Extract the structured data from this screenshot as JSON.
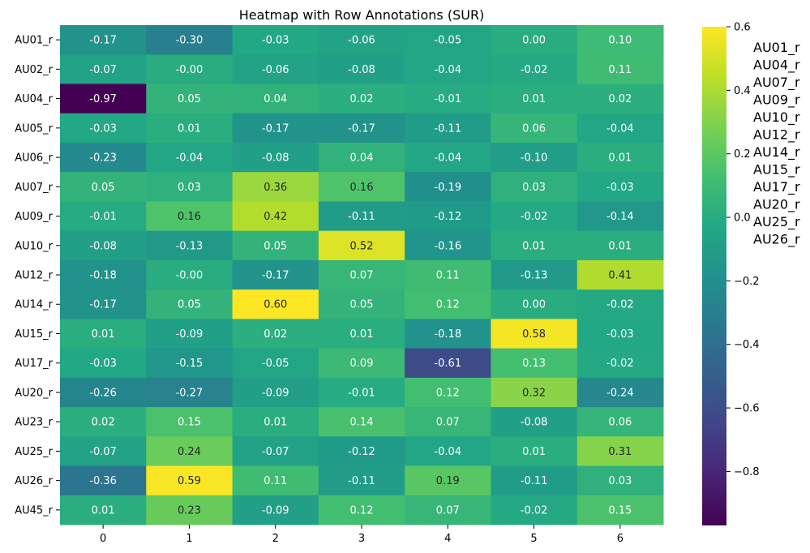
{
  "chart_data": {
    "type": "heatmap",
    "title": "Heatmap with Row Annotations (SUR)",
    "colormap": "viridis",
    "vmin": -0.97,
    "vmax": 0.6,
    "columns": [
      "0",
      "1",
      "2",
      "3",
      "4",
      "5",
      "6"
    ],
    "rows": [
      "AU01_r",
      "AU02_r",
      "AU04_r",
      "AU05_r",
      "AU06_r",
      "AU07_r",
      "AU09_r",
      "AU10_r",
      "AU12_r",
      "AU14_r",
      "AU15_r",
      "AU17_r",
      "AU20_r",
      "AU23_r",
      "AU25_r",
      "AU26_r",
      "AU45_r"
    ],
    "values": [
      [
        -0.17,
        -0.3,
        -0.03,
        -0.06,
        -0.05,
        0.0,
        0.1
      ],
      [
        -0.07,
        -0.0,
        -0.06,
        -0.08,
        -0.04,
        -0.02,
        0.11
      ],
      [
        -0.97,
        0.05,
        0.04,
        0.02,
        -0.01,
        0.01,
        0.02
      ],
      [
        -0.03,
        0.01,
        -0.17,
        -0.17,
        -0.11,
        0.06,
        -0.04
      ],
      [
        -0.23,
        -0.04,
        -0.08,
        0.04,
        -0.04,
        -0.1,
        0.01
      ],
      [
        0.05,
        0.03,
        0.36,
        0.16,
        -0.19,
        0.03,
        -0.03
      ],
      [
        -0.01,
        0.16,
        0.42,
        -0.11,
        -0.12,
        -0.02,
        -0.14
      ],
      [
        -0.08,
        -0.13,
        0.05,
        0.52,
        -0.16,
        0.01,
        0.01
      ],
      [
        -0.18,
        -0.0,
        -0.17,
        0.07,
        0.11,
        -0.13,
        0.41
      ],
      [
        -0.17,
        0.05,
        0.6,
        0.05,
        0.12,
        0.0,
        -0.02
      ],
      [
        0.01,
        -0.09,
        0.02,
        0.01,
        -0.18,
        0.58,
        -0.03
      ],
      [
        -0.03,
        -0.15,
        -0.05,
        0.09,
        -0.61,
        0.13,
        -0.02
      ],
      [
        -0.26,
        -0.27,
        -0.09,
        -0.01,
        0.12,
        0.32,
        -0.24
      ],
      [
        0.02,
        0.15,
        0.01,
        0.14,
        0.07,
        -0.08,
        0.06
      ],
      [
        -0.07,
        0.24,
        -0.07,
        -0.12,
        -0.04,
        0.01,
        0.31
      ],
      [
        -0.36,
        0.59,
        0.11,
        -0.11,
        0.19,
        -0.11,
        0.03
      ],
      [
        0.01,
        0.23,
        -0.09,
        0.12,
        0.07,
        -0.02,
        0.15
      ]
    ],
    "value_labels": [
      [
        "-0.17",
        "-0.30",
        "-0.03",
        "-0.06",
        "-0.05",
        "0.00",
        "0.10"
      ],
      [
        "-0.07",
        "-0.00",
        "-0.06",
        "-0.08",
        "-0.04",
        "-0.02",
        "0.11"
      ],
      [
        "-0.97",
        "0.05",
        "0.04",
        "0.02",
        "-0.01",
        "0.01",
        "0.02"
      ],
      [
        "-0.03",
        "0.01",
        "-0.17",
        "-0.17",
        "-0.11",
        "0.06",
        "-0.04"
      ],
      [
        "-0.23",
        "-0.04",
        "-0.08",
        "0.04",
        "-0.04",
        "-0.10",
        "0.01"
      ],
      [
        "0.05",
        "0.03",
        "0.36",
        "0.16",
        "-0.19",
        "0.03",
        "-0.03"
      ],
      [
        "-0.01",
        "0.16",
        "0.42",
        "-0.11",
        "-0.12",
        "-0.02",
        "-0.14"
      ],
      [
        "-0.08",
        "-0.13",
        "0.05",
        "0.52",
        "-0.16",
        "0.01",
        "0.01"
      ],
      [
        "-0.18",
        "-0.00",
        "-0.17",
        "0.07",
        "0.11",
        "-0.13",
        "0.41"
      ],
      [
        "-0.17",
        "0.05",
        "0.60",
        "0.05",
        "0.12",
        "0.00",
        "-0.02"
      ],
      [
        "0.01",
        "-0.09",
        "0.02",
        "0.01",
        "-0.18",
        "0.58",
        "-0.03"
      ],
      [
        "-0.03",
        "-0.15",
        "-0.05",
        "0.09",
        "-0.61",
        "0.13",
        "-0.02"
      ],
      [
        "-0.26",
        "-0.27",
        "-0.09",
        "-0.01",
        "0.12",
        "0.32",
        "-0.24"
      ],
      [
        "0.02",
        "0.15",
        "0.01",
        "0.14",
        "0.07",
        "-0.08",
        "0.06"
      ],
      [
        "-0.07",
        "0.24",
        "-0.07",
        "-0.12",
        "-0.04",
        "0.01",
        "0.31"
      ],
      [
        "-0.36",
        "0.59",
        "0.11",
        "-0.11",
        "0.19",
        "-0.11",
        "0.03"
      ],
      [
        "0.01",
        "0.23",
        "-0.09",
        "0.12",
        "0.07",
        "-0.02",
        "0.15"
      ]
    ],
    "colorbar_ticks": [
      0.6,
      0.4,
      0.2,
      0.0,
      -0.2,
      -0.4,
      -0.6,
      -0.8
    ],
    "colorbar_tick_labels": [
      "0.6",
      "0.4",
      "0.2",
      "0.0",
      "−0.2",
      "−0.4",
      "−0.6",
      "−0.8"
    ],
    "legend_entries": [
      "AU01_r",
      "AU04_r",
      "AU07_r",
      "AU09_r",
      "AU10_r",
      "AU12_r",
      "AU14_r",
      "AU15_r",
      "AU17_r",
      "AU20_r",
      "AU25_r",
      "AU26_r"
    ],
    "legend_placement": "right"
  }
}
